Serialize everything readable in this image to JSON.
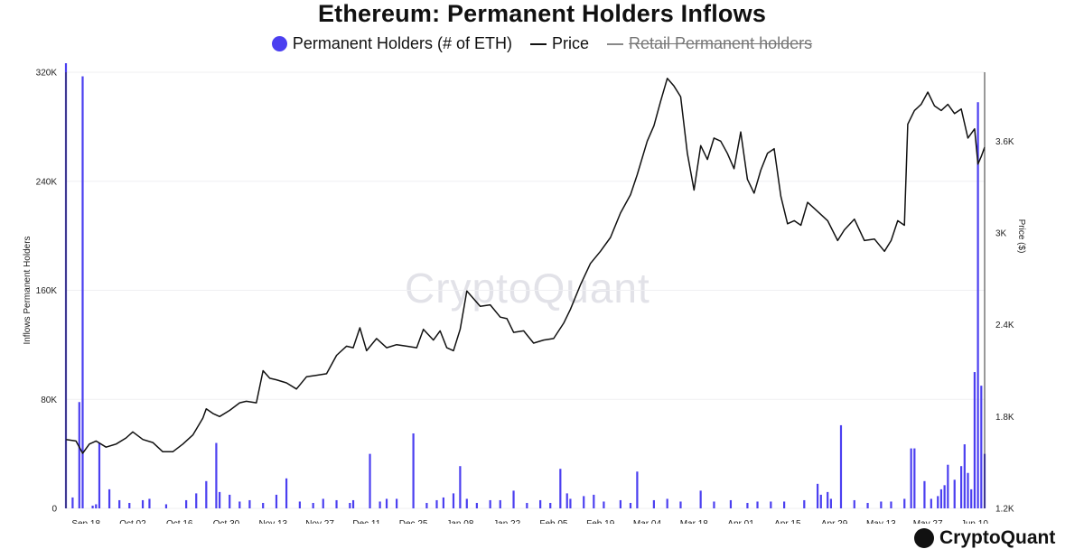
{
  "colors": {
    "bars": "#4b3ff0",
    "price": "#111111",
    "retail": "#888888",
    "watermark": "#e2e2e8"
  },
  "chart_data": {
    "type": "bar",
    "title": "Ethereum: Permanent Holders Inflows",
    "legend": [
      {
        "label": "Permanent Holders (# of ETH)",
        "marker": "dot",
        "color": "#4b3ff0",
        "hidden": false
      },
      {
        "label": "Price",
        "marker": "line",
        "color": "#111111",
        "hidden": false
      },
      {
        "label": "Retail Permanent holders",
        "marker": "line",
        "color": "#888888",
        "hidden": true
      }
    ],
    "ylabel_left": "Inflows Permanent Holders",
    "ylabel_right": "Price ($)",
    "ylim_left": [
      0,
      320000
    ],
    "yticks_left": [
      "0",
      "80K",
      "160K",
      "240K",
      "320K"
    ],
    "ylim_right": [
      1200,
      4050
    ],
    "yticks_right": [
      "1.2K",
      "1.8K",
      "2.4K",
      "3K",
      "3.6K"
    ],
    "x_start": "2023-09-12",
    "x_end": "2024-06-13",
    "xticks": [
      "Sep 18",
      "Oct 02",
      "Oct 16",
      "Oct 30",
      "Nov 13",
      "Nov 27",
      "Dec 11",
      "Dec 25",
      "Jan 08",
      "Jan 22",
      "Feb 05",
      "Feb 19",
      "Mar 04",
      "Mar 18",
      "Apr 01",
      "Apr 15",
      "Apr 29",
      "May 13",
      "May 27",
      "Jun 10"
    ],
    "series": [
      {
        "name": "Permanent Holders (# of ETH)",
        "type": "bar",
        "axis": "left",
        "x": [
          "2023-09-12",
          "2023-09-14",
          "2023-09-16",
          "2023-09-17",
          "2023-09-20",
          "2023-09-21",
          "2023-09-22",
          "2023-09-25",
          "2023-09-28",
          "2023-10-01",
          "2023-10-05",
          "2023-10-07",
          "2023-10-12",
          "2023-10-18",
          "2023-10-21",
          "2023-10-24",
          "2023-10-27",
          "2023-10-28",
          "2023-10-31",
          "2023-11-03",
          "2023-11-06",
          "2023-11-10",
          "2023-11-14",
          "2023-11-17",
          "2023-11-21",
          "2023-11-25",
          "2023-11-28",
          "2023-12-02",
          "2023-12-06",
          "2023-12-07",
          "2023-12-12",
          "2023-12-15",
          "2023-12-17",
          "2023-12-20",
          "2023-12-25",
          "2023-12-29",
          "2024-01-01",
          "2024-01-03",
          "2024-01-06",
          "2024-01-08",
          "2024-01-10",
          "2024-01-13",
          "2024-01-17",
          "2024-01-20",
          "2024-01-24",
          "2024-01-28",
          "2024-02-01",
          "2024-02-04",
          "2024-02-07",
          "2024-02-09",
          "2024-02-10",
          "2024-02-14",
          "2024-02-17",
          "2024-02-20",
          "2024-02-25",
          "2024-02-28",
          "2024-03-01",
          "2024-03-06",
          "2024-03-10",
          "2024-03-14",
          "2024-03-20",
          "2024-03-24",
          "2024-03-29",
          "2024-04-03",
          "2024-04-06",
          "2024-04-10",
          "2024-04-14",
          "2024-04-20",
          "2024-04-24",
          "2024-04-25",
          "2024-04-27",
          "2024-04-28",
          "2024-05-01",
          "2024-05-05",
          "2024-05-09",
          "2024-05-13",
          "2024-05-16",
          "2024-05-20",
          "2024-05-22",
          "2024-05-23",
          "2024-05-26",
          "2024-05-28",
          "2024-05-30",
          "2024-05-31",
          "2024-06-01",
          "2024-06-02",
          "2024-06-04",
          "2024-06-06",
          "2024-06-07",
          "2024-06-08",
          "2024-06-09",
          "2024-06-10",
          "2024-06-11",
          "2024-06-12",
          "2024-06-13"
        ],
        "values": [
          335000,
          8000,
          78000,
          317000,
          2000,
          3000,
          48000,
          14000,
          6000,
          4000,
          6000,
          7000,
          3000,
          6000,
          11000,
          20000,
          48000,
          12000,
          10000,
          5000,
          6000,
          4000,
          10000,
          22000,
          5000,
          4000,
          7000,
          6000,
          4000,
          6000,
          40000,
          5000,
          7000,
          7000,
          55000,
          4000,
          6000,
          8000,
          11000,
          31000,
          7000,
          4000,
          6000,
          6000,
          13000,
          4000,
          6000,
          4000,
          29000,
          11000,
          7000,
          9000,
          10000,
          5000,
          6000,
          4000,
          27000,
          6000,
          7000,
          5000,
          13000,
          5000,
          6000,
          4000,
          5000,
          5000,
          5000,
          6000,
          18000,
          10000,
          12000,
          7000,
          61000,
          6000,
          4000,
          5000,
          5000,
          7000,
          44000,
          44000,
          20000,
          7000,
          9000,
          14000,
          17000,
          32000,
          21000,
          31000,
          47000,
          26000,
          14000,
          100000,
          298000,
          90000,
          40000
        ]
      },
      {
        "name": "Price",
        "type": "line",
        "axis": "right",
        "x": [
          "2023-09-12",
          "2023-09-15",
          "2023-09-17",
          "2023-09-19",
          "2023-09-21",
          "2023-09-24",
          "2023-09-27",
          "2023-09-30",
          "2023-10-02",
          "2023-10-05",
          "2023-10-08",
          "2023-10-11",
          "2023-10-14",
          "2023-10-17",
          "2023-10-20",
          "2023-10-23",
          "2023-10-24",
          "2023-10-26",
          "2023-10-28",
          "2023-10-31",
          "2023-11-03",
          "2023-11-05",
          "2023-11-08",
          "2023-11-10",
          "2023-11-12",
          "2023-11-14",
          "2023-11-17",
          "2023-11-20",
          "2023-11-23",
          "2023-11-26",
          "2023-11-29",
          "2023-12-02",
          "2023-12-05",
          "2023-12-07",
          "2023-12-09",
          "2023-12-11",
          "2023-12-14",
          "2023-12-17",
          "2023-12-20",
          "2023-12-23",
          "2023-12-26",
          "2023-12-28",
          "2023-12-31",
          "2024-01-02",
          "2024-01-04",
          "2024-01-06",
          "2024-01-08",
          "2024-01-10",
          "2024-01-12",
          "2024-01-14",
          "2024-01-17",
          "2024-01-20",
          "2024-01-22",
          "2024-01-24",
          "2024-01-27",
          "2024-01-30",
          "2024-02-02",
          "2024-02-05",
          "2024-02-08",
          "2024-02-10",
          "2024-02-13",
          "2024-02-16",
          "2024-02-19",
          "2024-02-22",
          "2024-02-25",
          "2024-02-28",
          "2024-03-01",
          "2024-03-04",
          "2024-03-06",
          "2024-03-08",
          "2024-03-10",
          "2024-03-12",
          "2024-03-14",
          "2024-03-16",
          "2024-03-18",
          "2024-03-20",
          "2024-03-22",
          "2024-03-24",
          "2024-03-26",
          "2024-03-28",
          "2024-03-30",
          "2024-04-01",
          "2024-04-03",
          "2024-04-05",
          "2024-04-07",
          "2024-04-09",
          "2024-04-11",
          "2024-04-13",
          "2024-04-15",
          "2024-04-17",
          "2024-04-19",
          "2024-04-21",
          "2024-04-24",
          "2024-04-27",
          "2024-04-30",
          "2024-05-02",
          "2024-05-05",
          "2024-05-08",
          "2024-05-11",
          "2024-05-14",
          "2024-05-16",
          "2024-05-18",
          "2024-05-20",
          "2024-05-21",
          "2024-05-23",
          "2024-05-25",
          "2024-05-27",
          "2024-05-29",
          "2024-05-31",
          "2024-06-02",
          "2024-06-04",
          "2024-06-06",
          "2024-06-08",
          "2024-06-10",
          "2024-06-11",
          "2024-06-12",
          "2024-06-13"
        ],
        "values": [
          1650,
          1640,
          1560,
          1620,
          1640,
          1600,
          1620,
          1660,
          1700,
          1650,
          1630,
          1570,
          1570,
          1620,
          1680,
          1790,
          1850,
          1820,
          1800,
          1840,
          1890,
          1900,
          1890,
          2100,
          2050,
          2040,
          2020,
          1980,
          2060,
          2070,
          2080,
          2200,
          2260,
          2250,
          2380,
          2230,
          2310,
          2250,
          2270,
          2260,
          2250,
          2370,
          2300,
          2360,
          2250,
          2230,
          2370,
          2620,
          2570,
          2520,
          2530,
          2450,
          2440,
          2350,
          2360,
          2280,
          2300,
          2310,
          2410,
          2500,
          2660,
          2800,
          2880,
          2970,
          3130,
          3250,
          3380,
          3600,
          3700,
          3860,
          4010,
          3960,
          3890,
          3520,
          3280,
          3570,
          3480,
          3620,
          3600,
          3520,
          3420,
          3660,
          3350,
          3260,
          3410,
          3520,
          3550,
          3240,
          3060,
          3080,
          3050,
          3200,
          3140,
          3080,
          2950,
          3020,
          3090,
          2950,
          2960,
          2880,
          2950,
          3080,
          3050,
          3710,
          3800,
          3840,
          3920,
          3830,
          3800,
          3840,
          3780,
          3810,
          3620,
          3680,
          3450,
          3500,
          3560
        ]
      },
      {
        "name": "Retail Permanent holders",
        "type": "line",
        "axis": "left",
        "hidden": true,
        "x": [],
        "values": []
      }
    ],
    "grid": "horizontal",
    "legend_position": "top-center"
  },
  "watermark": "CryptoQuant",
  "footer": {
    "brand": "CryptoQuant"
  }
}
